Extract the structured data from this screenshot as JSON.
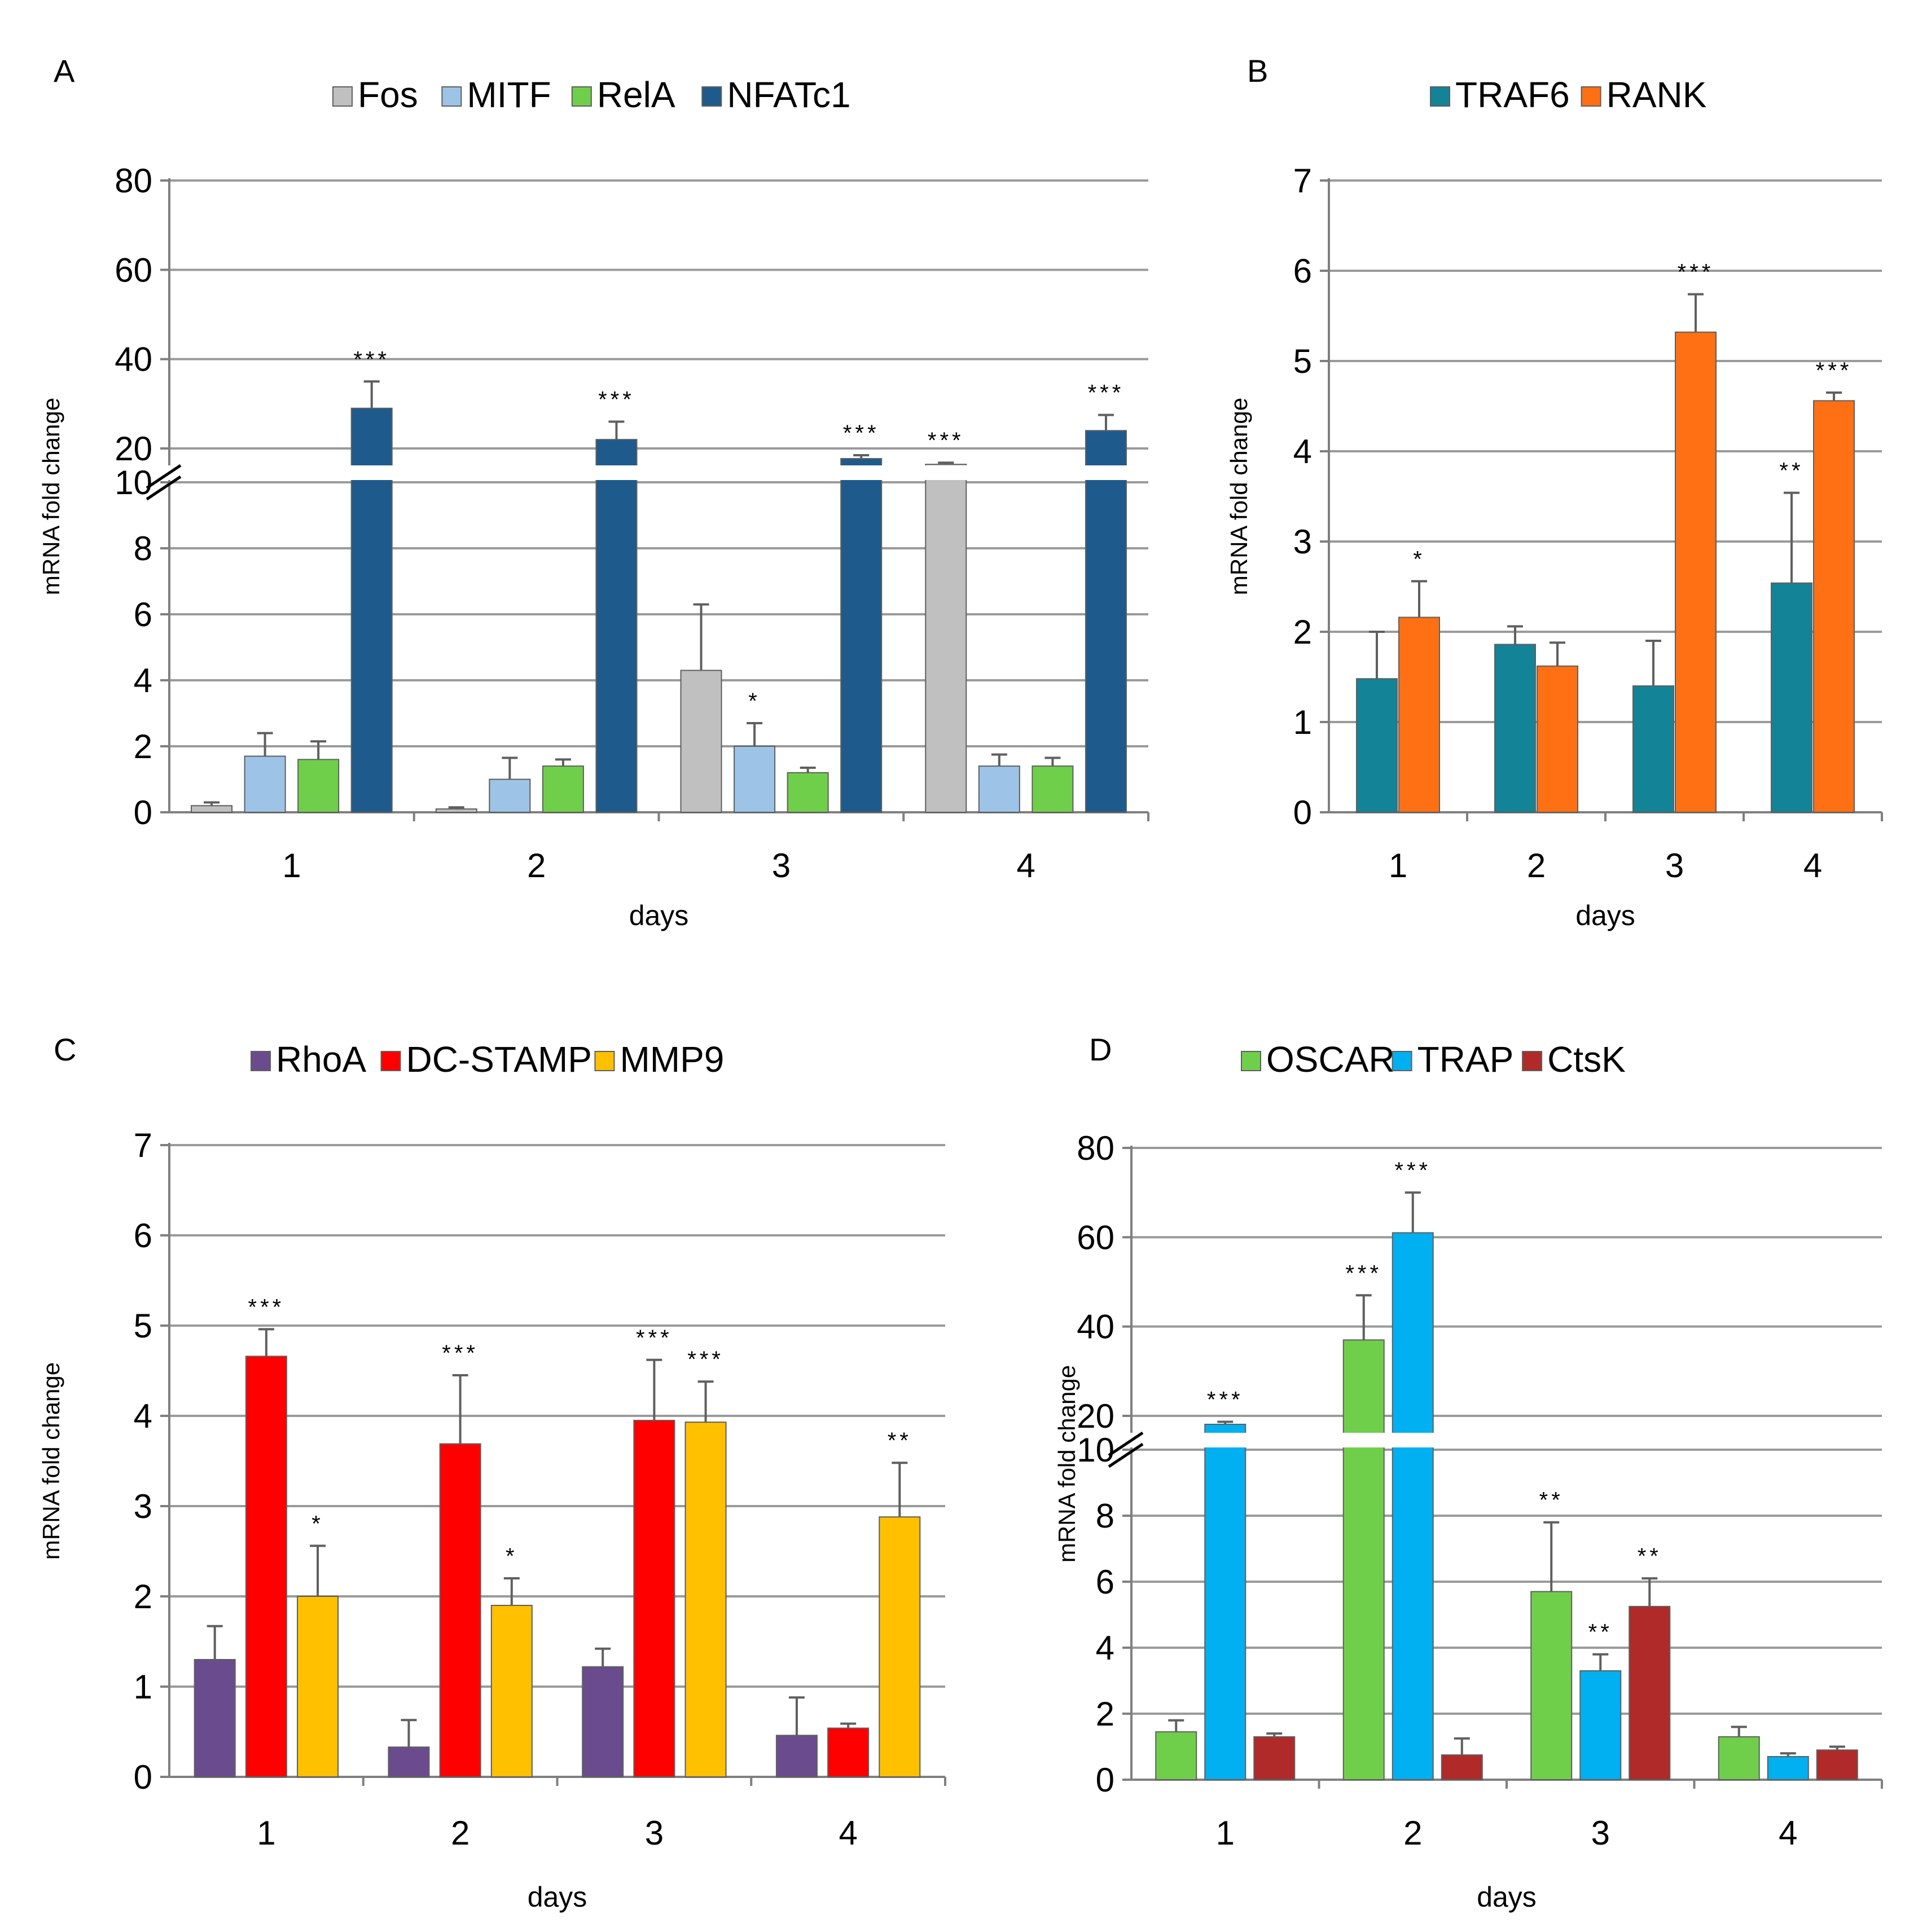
{
  "chart_data": [
    {
      "panel": "A",
      "type": "bar",
      "categories": [
        "1",
        "2",
        "3",
        "4"
      ],
      "xlabel": "days",
      "ylabel": "mRNA fold change",
      "y_ticks": [
        "0",
        "2",
        "4",
        "6",
        "8",
        "10",
        "20",
        "40",
        "60",
        "80"
      ],
      "axis_break": {
        "lower_range": [
          0,
          10
        ],
        "upper_range": [
          10,
          80
        ]
      },
      "series": [
        {
          "name": "Fos",
          "color": "#c0c0c0",
          "values": [
            0.2,
            0.1,
            4.3,
            10.6
          ],
          "errors": [
            0.1,
            0.05,
            2.0,
            1.0
          ],
          "sig": [
            "",
            "",
            "",
            "***"
          ]
        },
        {
          "name": "MITF",
          "color": "#9dc3e6",
          "values": [
            1.7,
            1.0,
            2.0,
            1.4
          ],
          "errors": [
            0.7,
            0.65,
            0.7,
            0.35
          ],
          "sig": [
            "",
            "",
            "*",
            ""
          ]
        },
        {
          "name": "RelA",
          "color": "#70cf4a",
          "values": [
            1.6,
            1.4,
            1.2,
            1.4
          ],
          "errors": [
            0.55,
            0.2,
            0.15,
            0.25
          ],
          "sig": [
            "",
            "",
            "",
            ""
          ]
        },
        {
          "name": "NFATc1",
          "color": "#1f5a8c",
          "values": [
            29,
            22,
            14,
            24
          ],
          "errors": [
            6,
            4,
            2,
            3.5
          ],
          "sig": [
            "***",
            "***",
            "***",
            "***"
          ]
        }
      ]
    },
    {
      "panel": "B",
      "type": "bar",
      "categories": [
        "1",
        "2",
        "3",
        "4"
      ],
      "xlabel": "days",
      "ylabel": "mRNA fold change",
      "y_ticks": [
        "0",
        "1",
        "2",
        "3",
        "4",
        "5",
        "6",
        "7"
      ],
      "ylim": [
        0,
        7
      ],
      "series": [
        {
          "name": "TRAF6",
          "color": "#138397",
          "values": [
            1.48,
            1.86,
            1.4,
            2.54
          ],
          "errors": [
            0.52,
            0.2,
            0.5,
            1.0
          ],
          "sig": [
            "",
            "",
            "",
            "**"
          ]
        },
        {
          "name": "RANK",
          "color": "#ff7014",
          "values": [
            2.16,
            1.62,
            5.32,
            4.56
          ],
          "errors": [
            0.4,
            0.26,
            0.42,
            0.09
          ],
          "sig": [
            "*",
            "",
            "***",
            "***"
          ]
        }
      ]
    },
    {
      "panel": "C",
      "type": "bar",
      "categories": [
        "1",
        "2",
        "3",
        "4"
      ],
      "xlabel": "days",
      "ylabel": "mRNA fold change",
      "y_ticks": [
        "0",
        "1",
        "2",
        "3",
        "4",
        "5",
        "6",
        "7"
      ],
      "ylim": [
        0,
        7
      ],
      "series": [
        {
          "name": "RhoA",
          "color": "#6a4c8e",
          "values": [
            1.3,
            0.33,
            1.22,
            0.46
          ],
          "errors": [
            0.37,
            0.3,
            0.2,
            0.42
          ],
          "sig": [
            "",
            "",
            "",
            ""
          ]
        },
        {
          "name": "DC-STAMP",
          "color": "#ff0000",
          "values": [
            4.66,
            3.69,
            3.95,
            0.54
          ],
          "errors": [
            0.3,
            0.76,
            0.67,
            0.05
          ],
          "sig": [
            "***",
            "***",
            "***",
            ""
          ]
        },
        {
          "name": "MMP9",
          "color": "#ffc000",
          "values": [
            2.0,
            1.9,
            3.93,
            2.88
          ],
          "errors": [
            0.56,
            0.3,
            0.45,
            0.6
          ],
          "sig": [
            "*",
            "*",
            "***",
            "**"
          ]
        }
      ]
    },
    {
      "panel": "D",
      "type": "bar",
      "categories": [
        "1",
        "2",
        "3",
        "4"
      ],
      "xlabel": "days",
      "ylabel": "mRNA fold change",
      "y_ticks": [
        "0",
        "2",
        "4",
        "6",
        "8",
        "10",
        "20",
        "40",
        "60",
        "80"
      ],
      "axis_break": {
        "lower_range": [
          0,
          10
        ],
        "upper_range": [
          10,
          80
        ]
      },
      "series": [
        {
          "name": "OSCAR",
          "color": "#70cf4a",
          "values": [
            1.45,
            37,
            5.7,
            1.3
          ],
          "errors": [
            0.35,
            10,
            2.1,
            0.3
          ],
          "sig": [
            "",
            "***",
            "**",
            ""
          ]
        },
        {
          "name": "TRAP",
          "color": "#00b0f0",
          "values": [
            15,
            61,
            3.3,
            0.7
          ],
          "errors": [
            1.5,
            9,
            0.5,
            0.1
          ],
          "sig": [
            "***",
            "***",
            "**",
            ""
          ]
        },
        {
          "name": "CtsK",
          "color": "#b02a2a",
          "values": [
            1.3,
            0.75,
            5.25,
            0.9
          ],
          "errors": [
            0.1,
            0.5,
            0.85,
            0.1
          ],
          "sig": [
            "",
            "",
            "**",
            ""
          ]
        }
      ]
    }
  ]
}
